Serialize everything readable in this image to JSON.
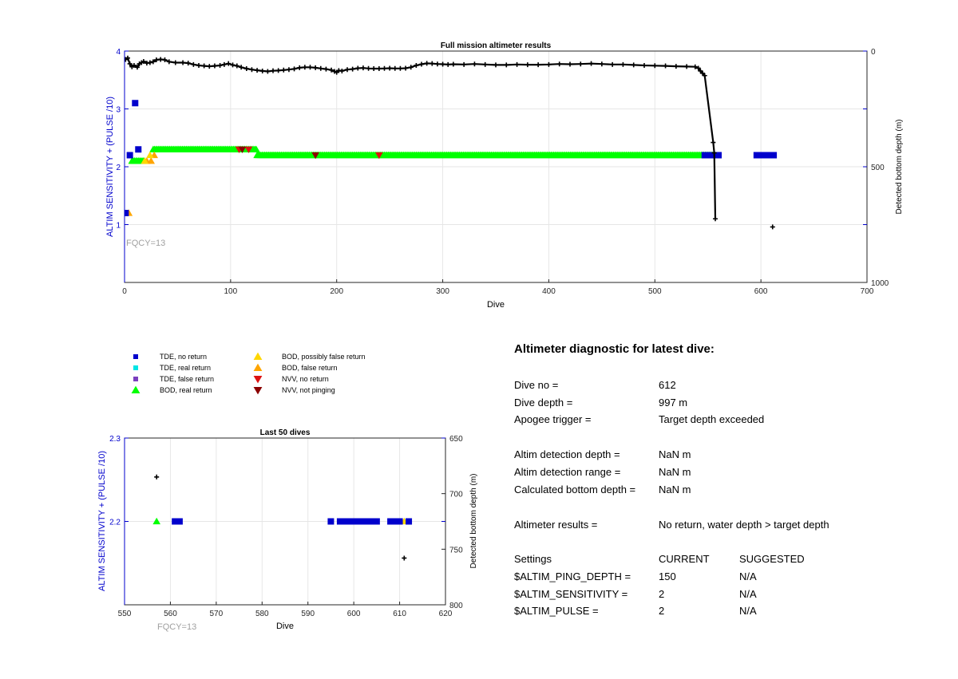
{
  "charts": {
    "full": {
      "title": "Full mission altimeter results",
      "xlabel": "Dive",
      "ylabel_left": "ALTIM SENSITIVITY + (PULSE /10)",
      "ylabel_right": "Detected bottom depth (m)",
      "xticks": [
        "0",
        "100",
        "200",
        "300",
        "400",
        "500",
        "600",
        "700"
      ],
      "yticks_left": [
        "1",
        "2",
        "3",
        "4"
      ],
      "yticks_right": [
        "0",
        "500",
        "1000"
      ],
      "annotation": "FQCY=13"
    },
    "last50": {
      "title": "Last 50 dives",
      "xlabel": "Dive",
      "ylabel_left": "ALTIM SENSITIVITY + (PULSE /10)",
      "ylabel_right": "Detected bottom depth (m)",
      "xticks": [
        "550",
        "560",
        "570",
        "580",
        "590",
        "600",
        "610",
        "620"
      ],
      "yticks_left": [
        "2.2",
        "2.3"
      ],
      "yticks_right": [
        "650",
        "700",
        "750",
        "800"
      ],
      "annotation": "FQCY=13"
    }
  },
  "chart_data": [
    {
      "type": "scatter",
      "title": "Full mission altimeter results",
      "xlabel": "Dive",
      "ylabel": "ALTIM SENSITIVITY + (PULSE /10)",
      "y2label": "Detected bottom depth (m)",
      "xlim": [
        0,
        700
      ],
      "ylim": [
        0,
        4
      ],
      "y2lim": [
        0,
        1000
      ],
      "y2_reversed": true,
      "grid": true,
      "annotations": [
        "FQCY=13"
      ],
      "series": [
        {
          "name": "TDE, no return",
          "color": "#0000cc",
          "points": [
            [
              1,
              1.2
            ],
            [
              5,
              2.2
            ],
            [
              10,
              3.1
            ],
            [
              13,
              2.3
            ],
            [
              547,
              2.2
            ],
            [
              549,
              2.2
            ],
            [
              551,
              2.2
            ],
            [
              553,
              2.2
            ],
            [
              557,
              2.2
            ],
            [
              560,
              2.2
            ],
            [
              596,
              2.2
            ],
            [
              598,
              2.2
            ],
            [
              600,
              2.2
            ],
            [
              602,
              2.2
            ],
            [
              604,
              2.2
            ],
            [
              606,
              2.2
            ],
            [
              608,
              2.2
            ],
            [
              610,
              2.2
            ],
            [
              612,
              2.2
            ]
          ]
        },
        {
          "name": "BOD, real return",
          "color": "#00ff00",
          "ranges": [
            [
              7,
              20,
              2.1
            ],
            [
              27,
              125,
              2.3
            ],
            [
              125,
              555,
              2.2
            ]
          ]
        },
        {
          "name": "BOD, false return",
          "color": "#ffa500",
          "points": [
            [
              4,
              1.2
            ],
            [
              21,
              2.1
            ],
            [
              25,
              2.1
            ],
            [
              28,
              2.2
            ]
          ]
        },
        {
          "name": "BOD, possibly false return",
          "color": "#ffd700",
          "points": [
            [
              19,
              2.1
            ],
            [
              24,
              2.2
            ]
          ]
        },
        {
          "name": "NVV, no return",
          "color": "#dd1111",
          "points": [
            [
              108,
              2.3
            ],
            [
              117,
              2.3
            ],
            [
              240,
              2.2
            ]
          ]
        },
        {
          "name": "NVV, not pinging",
          "color": "#8b0000",
          "points": [
            [
              111,
              2.3
            ],
            [
              180,
              2.2
            ]
          ]
        },
        {
          "name": "Detected bottom depth",
          "axis": "right",
          "color": "#000000",
          "points": [
            [
              1,
              36
            ],
            [
              3,
              30
            ],
            [
              5,
              55
            ],
            [
              7,
              68
            ],
            [
              9,
              62
            ],
            [
              12,
              70
            ],
            [
              14,
              55
            ],
            [
              16,
              50
            ],
            [
              18,
              45
            ],
            [
              21,
              52
            ],
            [
              24,
              50
            ],
            [
              27,
              46
            ],
            [
              30,
              38
            ],
            [
              34,
              36
            ],
            [
              38,
              38
            ],
            [
              42,
              46
            ],
            [
              48,
              50
            ],
            [
              55,
              50
            ],
            [
              60,
              52
            ],
            [
              65,
              58
            ],
            [
              70,
              62
            ],
            [
              75,
              64
            ],
            [
              80,
              66
            ],
            [
              85,
              64
            ],
            [
              90,
              62
            ],
            [
              94,
              58
            ],
            [
              98,
              54
            ],
            [
              102,
              60
            ],
            [
              106,
              64
            ],
            [
              110,
              70
            ],
            [
              115,
              76
            ],
            [
              120,
              80
            ],
            [
              125,
              83
            ],
            [
              130,
              86
            ],
            [
              135,
              88
            ],
            [
              140,
              85
            ],
            [
              145,
              84
            ],
            [
              150,
              82
            ],
            [
              155,
              80
            ],
            [
              160,
              77
            ],
            [
              165,
              72
            ],
            [
              170,
              70
            ],
            [
              175,
              70
            ],
            [
              180,
              72
            ],
            [
              185,
              75
            ],
            [
              190,
              78
            ],
            [
              195,
              82
            ],
            [
              198,
              88
            ],
            [
              200,
              92
            ],
            [
              202,
              84
            ],
            [
              205,
              86
            ],
            [
              210,
              80
            ],
            [
              215,
              78
            ],
            [
              220,
              74
            ],
            [
              225,
              73
            ],
            [
              230,
              75
            ],
            [
              235,
              76
            ],
            [
              240,
              76
            ],
            [
              245,
              75
            ],
            [
              250,
              74
            ],
            [
              255,
              75
            ],
            [
              260,
              75
            ],
            [
              265,
              74
            ],
            [
              270,
              70
            ],
            [
              275,
              62
            ],
            [
              280,
              57
            ],
            [
              285,
              53
            ],
            [
              290,
              54
            ],
            [
              295,
              56
            ],
            [
              300,
              57
            ],
            [
              305,
              58
            ],
            [
              310,
              57
            ],
            [
              320,
              58
            ],
            [
              330,
              56
            ],
            [
              340,
              58
            ],
            [
              350,
              60
            ],
            [
              360,
              60
            ],
            [
              370,
              58
            ],
            [
              380,
              59
            ],
            [
              390,
              59
            ],
            [
              400,
              58
            ],
            [
              410,
              56
            ],
            [
              420,
              57
            ],
            [
              430,
              56
            ],
            [
              440,
              54
            ],
            [
              450,
              56
            ],
            [
              460,
              58
            ],
            [
              470,
              58
            ],
            [
              480,
              60
            ],
            [
              490,
              62
            ],
            [
              500,
              63
            ],
            [
              510,
              64
            ],
            [
              520,
              66
            ],
            [
              530,
              67
            ],
            [
              538,
              68
            ],
            [
              541,
              74
            ],
            [
              543,
              86
            ],
            [
              545,
              96
            ],
            [
              547,
              106
            ],
            [
              555,
              395
            ],
            [
              556,
              440
            ],
            [
              557,
              725
            ],
            [
              611,
              760
            ]
          ]
        }
      ]
    },
    {
      "type": "scatter",
      "title": "Last 50 dives",
      "xlabel": "Dive",
      "ylabel": "ALTIM SENSITIVITY + (PULSE /10)",
      "y2label": "Detected bottom depth (m)",
      "xlim": [
        550,
        620
      ],
      "ylim": [
        2.1,
        2.3
      ],
      "y2lim": [
        650,
        800
      ],
      "y2_reversed": true,
      "grid": true,
      "annotations": [
        "FQCY=13"
      ],
      "series": [
        {
          "name": "TDE, no return",
          "color": "#0000cc",
          "points": [
            [
              561,
              2.2
            ],
            [
              562,
              2.2
            ],
            [
              595,
              2.2
            ],
            [
              597,
              2.2
            ],
            [
              598,
              2.2
            ],
            [
              599,
              2.2
            ],
            [
              600,
              2.2
            ],
            [
              601,
              2.2
            ],
            [
              602,
              2.2
            ],
            [
              603,
              2.2
            ],
            [
              604,
              2.2
            ],
            [
              605,
              2.2
            ],
            [
              608,
              2.2
            ],
            [
              609,
              2.2
            ],
            [
              610,
              2.2
            ],
            [
              612,
              2.2
            ]
          ]
        },
        {
          "name": "BOD, real return",
          "color": "#00ff00",
          "points": [
            [
              557,
              2.2
            ]
          ]
        },
        {
          "name": "BOD, possibly false return",
          "color": "#ffd700",
          "points": [
            [
              611,
              2.2
            ]
          ]
        },
        {
          "name": "Detected bottom depth",
          "axis": "right",
          "color": "#000000",
          "points": [
            [
              557,
              685
            ],
            [
              611,
              758
            ]
          ]
        }
      ]
    }
  ],
  "legend": {
    "items": [
      {
        "label": "TDE, no return",
        "marker": "square",
        "color": "#0000cc"
      },
      {
        "label": "TDE, real return",
        "marker": "square",
        "color": "#00e5e5"
      },
      {
        "label": "TDE, false return",
        "marker": "square",
        "color": "#7b3fbf"
      },
      {
        "label": "BOD, real return",
        "marker": "triangle-up",
        "color": "#00ff00"
      },
      {
        "label": "BOD, possibly false return",
        "marker": "triangle-up",
        "color": "#ffd700"
      },
      {
        "label": "BOD, false return",
        "marker": "triangle-up",
        "color": "#ffa500"
      },
      {
        "label": "NVV, no return",
        "marker": "triangle-down",
        "color": "#dd1111"
      },
      {
        "label": "NVV, not pinging",
        "marker": "triangle-down",
        "color": "#8b0000"
      }
    ]
  },
  "diagnostic": {
    "title": "Altimeter diagnostic for latest dive:",
    "dive_no_label": "Dive no =",
    "dive_no": "612",
    "dive_depth_label": "Dive depth =",
    "dive_depth": "997 m",
    "apogee_label": "Apogee trigger =",
    "apogee": "Target depth exceeded",
    "detect_depth_label": "Altim detection depth =",
    "detect_depth": "NaN m",
    "detect_range_label": "Altim detection range =",
    "detect_range": "NaN m",
    "calc_depth_label": "Calculated bottom depth =",
    "calc_depth": "NaN m",
    "results_label": "Altimeter results =",
    "results": "No return, water depth > target depth",
    "settings": {
      "header": {
        "name": "Settings",
        "current": "CURRENT",
        "suggested": "SUGGESTED"
      },
      "rows": [
        {
          "name": "$ALTIM_PING_DEPTH =",
          "current": "150",
          "suggested": "N/A"
        },
        {
          "name": "$ALTIM_SENSITIVITY =",
          "current": "2",
          "suggested": "N/A"
        },
        {
          "name": "$ALTIM_PULSE =",
          "current": "2",
          "suggested": "N/A"
        }
      ]
    }
  }
}
